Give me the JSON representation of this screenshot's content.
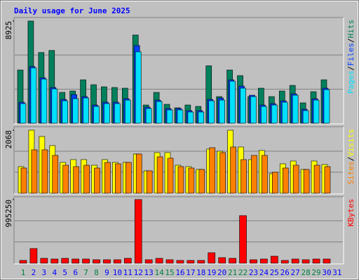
{
  "title": "Daily usage for June 2025",
  "legend_separator": "/",
  "chart_data": [
    {
      "type": "bar",
      "ylim": [
        0,
        8925
      ],
      "yticks": [
        8925
      ],
      "series": [
        {
          "name": "Hits",
          "color": "#00805c",
          "values": [
            4646,
            8925,
            6174,
            6357,
            2690,
            2812,
            3790,
            3362,
            3179,
            3118,
            3057,
            7702,
            1589,
            2690,
            1650,
            1345,
            1589,
            1467,
            5013,
            2323,
            4646,
            4157,
            2323,
            3057,
            2323,
            2812,
            3301,
            1773,
            2751,
            3790,
            null
          ]
        },
        {
          "name": "Files",
          "color": "#0040ff",
          "values": [
            1834,
            4950,
            3973,
            3118,
            2078,
            2500,
            2323,
            1589,
            1834,
            1834,
            2140,
            6785,
            1406,
            2017,
            1284,
            1284,
            1100,
            1100,
            2078,
            2201,
            3790,
            3240,
            2445,
            1589,
            1712,
            1956,
            2567,
            1222,
            2140,
            3057,
            null
          ]
        },
        {
          "name": "Pages",
          "color": "#00e0ff",
          "values": [
            1712,
            4829,
            3851,
            2995,
            1956,
            2140,
            2201,
            1467,
            1712,
            1712,
            2017,
            6235,
            1284,
            1895,
            1161,
            1161,
            978,
            978,
            1956,
            2017,
            3668,
            3057,
            2323,
            1467,
            1589,
            1834,
            2445,
            1100,
            2017,
            2934,
            null
          ]
        }
      ]
    },
    {
      "type": "bar",
      "ylim": [
        0,
        2068
      ],
      "yticks": [
        2068
      ],
      "series": [
        {
          "name": "Visits",
          "color": "#ffff00",
          "values": [
            873,
            2068,
            1861,
            1563,
            1011,
            1103,
            1103,
            919,
            1103,
            1011,
            1011,
            1287,
            735,
            1333,
            1333,
            919,
            873,
            781,
            1448,
            1379,
            2068,
            1517,
            1103,
            1402,
            643,
            965,
            1057,
            781,
            1057,
            942,
            null
          ]
        },
        {
          "name": "Sites",
          "color": "#ff8000",
          "values": [
            827,
            1425,
            1425,
            1241,
            919,
            873,
            919,
            827,
            1011,
            965,
            1011,
            1287,
            735,
            1195,
            1149,
            873,
            827,
            781,
            1494,
            1333,
            1517,
            1103,
            1241,
            1241,
            689,
            827,
            919,
            781,
            919,
            873,
            null
          ]
        }
      ]
    },
    {
      "type": "bar",
      "ylim": [
        0,
        995250
      ],
      "yticks": [
        995250
      ],
      "categories": [
        "1",
        "2",
        "3",
        "4",
        "5",
        "6",
        "7",
        "8",
        "9",
        "10",
        "11",
        "12",
        "13",
        "14",
        "15",
        "16",
        "17",
        "18",
        "19",
        "20",
        "21",
        "22",
        "23",
        "24",
        "25",
        "26",
        "27",
        "28",
        "29",
        "30",
        "31"
      ],
      "category_colors": [
        "#008040",
        "#0000ff",
        "#0000ff",
        "#0000ff",
        "#0000ff",
        "#0000ff",
        "#008040",
        "#008040",
        "#0000ff",
        "#0000ff",
        "#0000ff",
        "#0000ff",
        "#0000ff",
        "#008040",
        "#008040",
        "#0000ff",
        "#0000ff",
        "#0000ff",
        "#0000ff",
        "#0000ff",
        "#008040",
        "#008040",
        "#0000ff",
        "#0000ff",
        "#0000ff",
        "#0000ff",
        "#0000ff",
        "#008040",
        "#008040",
        "#0000ff",
        "#0000ff"
      ],
      "series": [
        {
          "name": "KBytes",
          "color": "#ff0000",
          "values": [
            43748,
            229677,
            76559,
            65622,
            76559,
            65622,
            65622,
            54685,
            54685,
            54685,
            76559,
            995250,
            54685,
            76559,
            54685,
            43748,
            43748,
            43748,
            164055,
            87496,
            76559,
            743716,
            54685,
            65622,
            109370,
            43748,
            65622,
            54685,
            65622,
            65622,
            null
          ]
        }
      ]
    }
  ]
}
